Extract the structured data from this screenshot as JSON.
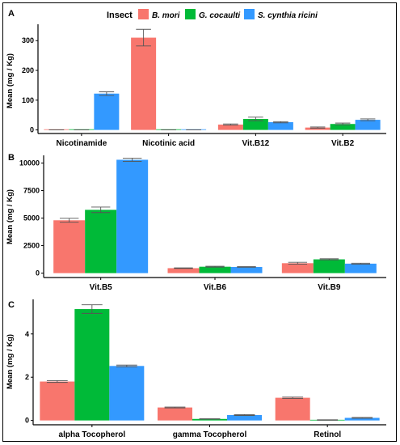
{
  "chart_data": {
    "type": "bar",
    "legend": {
      "title": "Insect",
      "placement": "top",
      "entries": [
        {
          "name": "B. mori",
          "color": "#F8766D"
        },
        {
          "name": "G. cocaulti",
          "color": "#00BA38"
        },
        {
          "name": "S. cynthia ricini",
          "color": "#3399FF"
        }
      ]
    },
    "grid": false,
    "panels": [
      {
        "letter": "A",
        "ylabel": "Mean (mg / Kg)",
        "ylim": [
          -12,
          355
        ],
        "yticks": [
          "0",
          "100",
          "200",
          "300"
        ],
        "categories": [
          "Nicotinamide",
          "Nicotinic acid",
          "Vit.B12",
          "Vit.B2"
        ],
        "series": [
          {
            "name": "B. mori",
            "values": [
              0,
              310,
              18,
              8
            ],
            "errors": [
              0,
              28,
              2,
              2
            ]
          },
          {
            "name": "G. cocaulti",
            "values": [
              0,
              0,
              37,
              20
            ],
            "errors": [
              0,
              0,
              6,
              3
            ]
          },
          {
            "name": "S. cynthia ricini",
            "values": [
              122,
              0,
              26,
              34
            ],
            "errors": [
              6,
              0,
              2,
              3
            ]
          }
        ]
      },
      {
        "letter": "B",
        "ylabel": "Mean (mg / Kg)",
        "ylim": [
          -400,
          10700
        ],
        "yticks": [
          "0",
          "2500",
          "5000",
          "7500",
          "10000"
        ],
        "categories": [
          "Vit.B5",
          "Vit.B6",
          "Vit.B9"
        ],
        "series": [
          {
            "name": "B. mori",
            "values": [
              4800,
              450,
              900
            ],
            "errors": [
              180,
              30,
              80
            ]
          },
          {
            "name": "G. cocaulti",
            "values": [
              5750,
              580,
              1250
            ],
            "errors": [
              250,
              40,
              50
            ]
          },
          {
            "name": "S. cynthia ricini",
            "values": [
              10300,
              560,
              860
            ],
            "errors": [
              150,
              30,
              40
            ]
          }
        ]
      },
      {
        "letter": "C",
        "ylabel": "Mean (mg / Kg)",
        "ylim": [
          -0.2,
          5.6
        ],
        "yticks": [
          "0",
          "2",
          "4"
        ],
        "categories": [
          "alpha Tocopherol",
          "gamma Tocopherol",
          "Retinol"
        ],
        "series": [
          {
            "name": "B. mori",
            "values": [
              1.8,
              0.6,
              1.05
            ],
            "errors": [
              0.04,
              0.02,
              0.03
            ]
          },
          {
            "name": "G. cocaulti",
            "values": [
              5.15,
              0.07,
              0.02
            ],
            "errors": [
              0.2,
              0.01,
              0.01
            ]
          },
          {
            "name": "S. cynthia ricini",
            "values": [
              2.52,
              0.25,
              0.12
            ],
            "errors": [
              0.04,
              0.02,
              0.02
            ]
          }
        ]
      }
    ]
  }
}
